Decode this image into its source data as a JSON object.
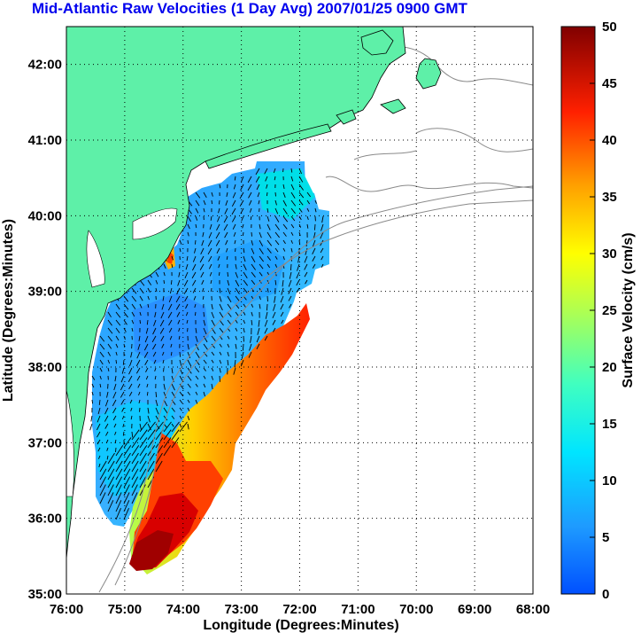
{
  "title": "Mid-Atlantic Raw Velocities (1 Day Avg) 2007/01/25 0900 GMT",
  "map": {
    "xlabel": "Longitude (Degrees:Minutes)",
    "ylabel": "Latitude (Degrees:Minutes)",
    "lon_range": [
      -76,
      -68
    ],
    "lat_range": [
      35,
      42.5
    ],
    "x_ticks": [
      "76:00",
      "75:00",
      "74:00",
      "73:00",
      "72:00",
      "71:00",
      "70:00",
      "69:00",
      "68:00"
    ],
    "y_ticks": [
      "35:00",
      "36:00",
      "37:00",
      "38:00",
      "39:00",
      "40:00",
      "41:00",
      "42:00"
    ],
    "land_color": "#5ef0a8",
    "grid": "dotted"
  },
  "colorbar": {
    "label": "Surface Velocity (cm/s)",
    "range": [
      0,
      50
    ],
    "ticks": [
      "0",
      "5",
      "10",
      "15",
      "20",
      "25",
      "30",
      "35",
      "40",
      "45",
      "50"
    ],
    "colormap": "jet"
  }
}
